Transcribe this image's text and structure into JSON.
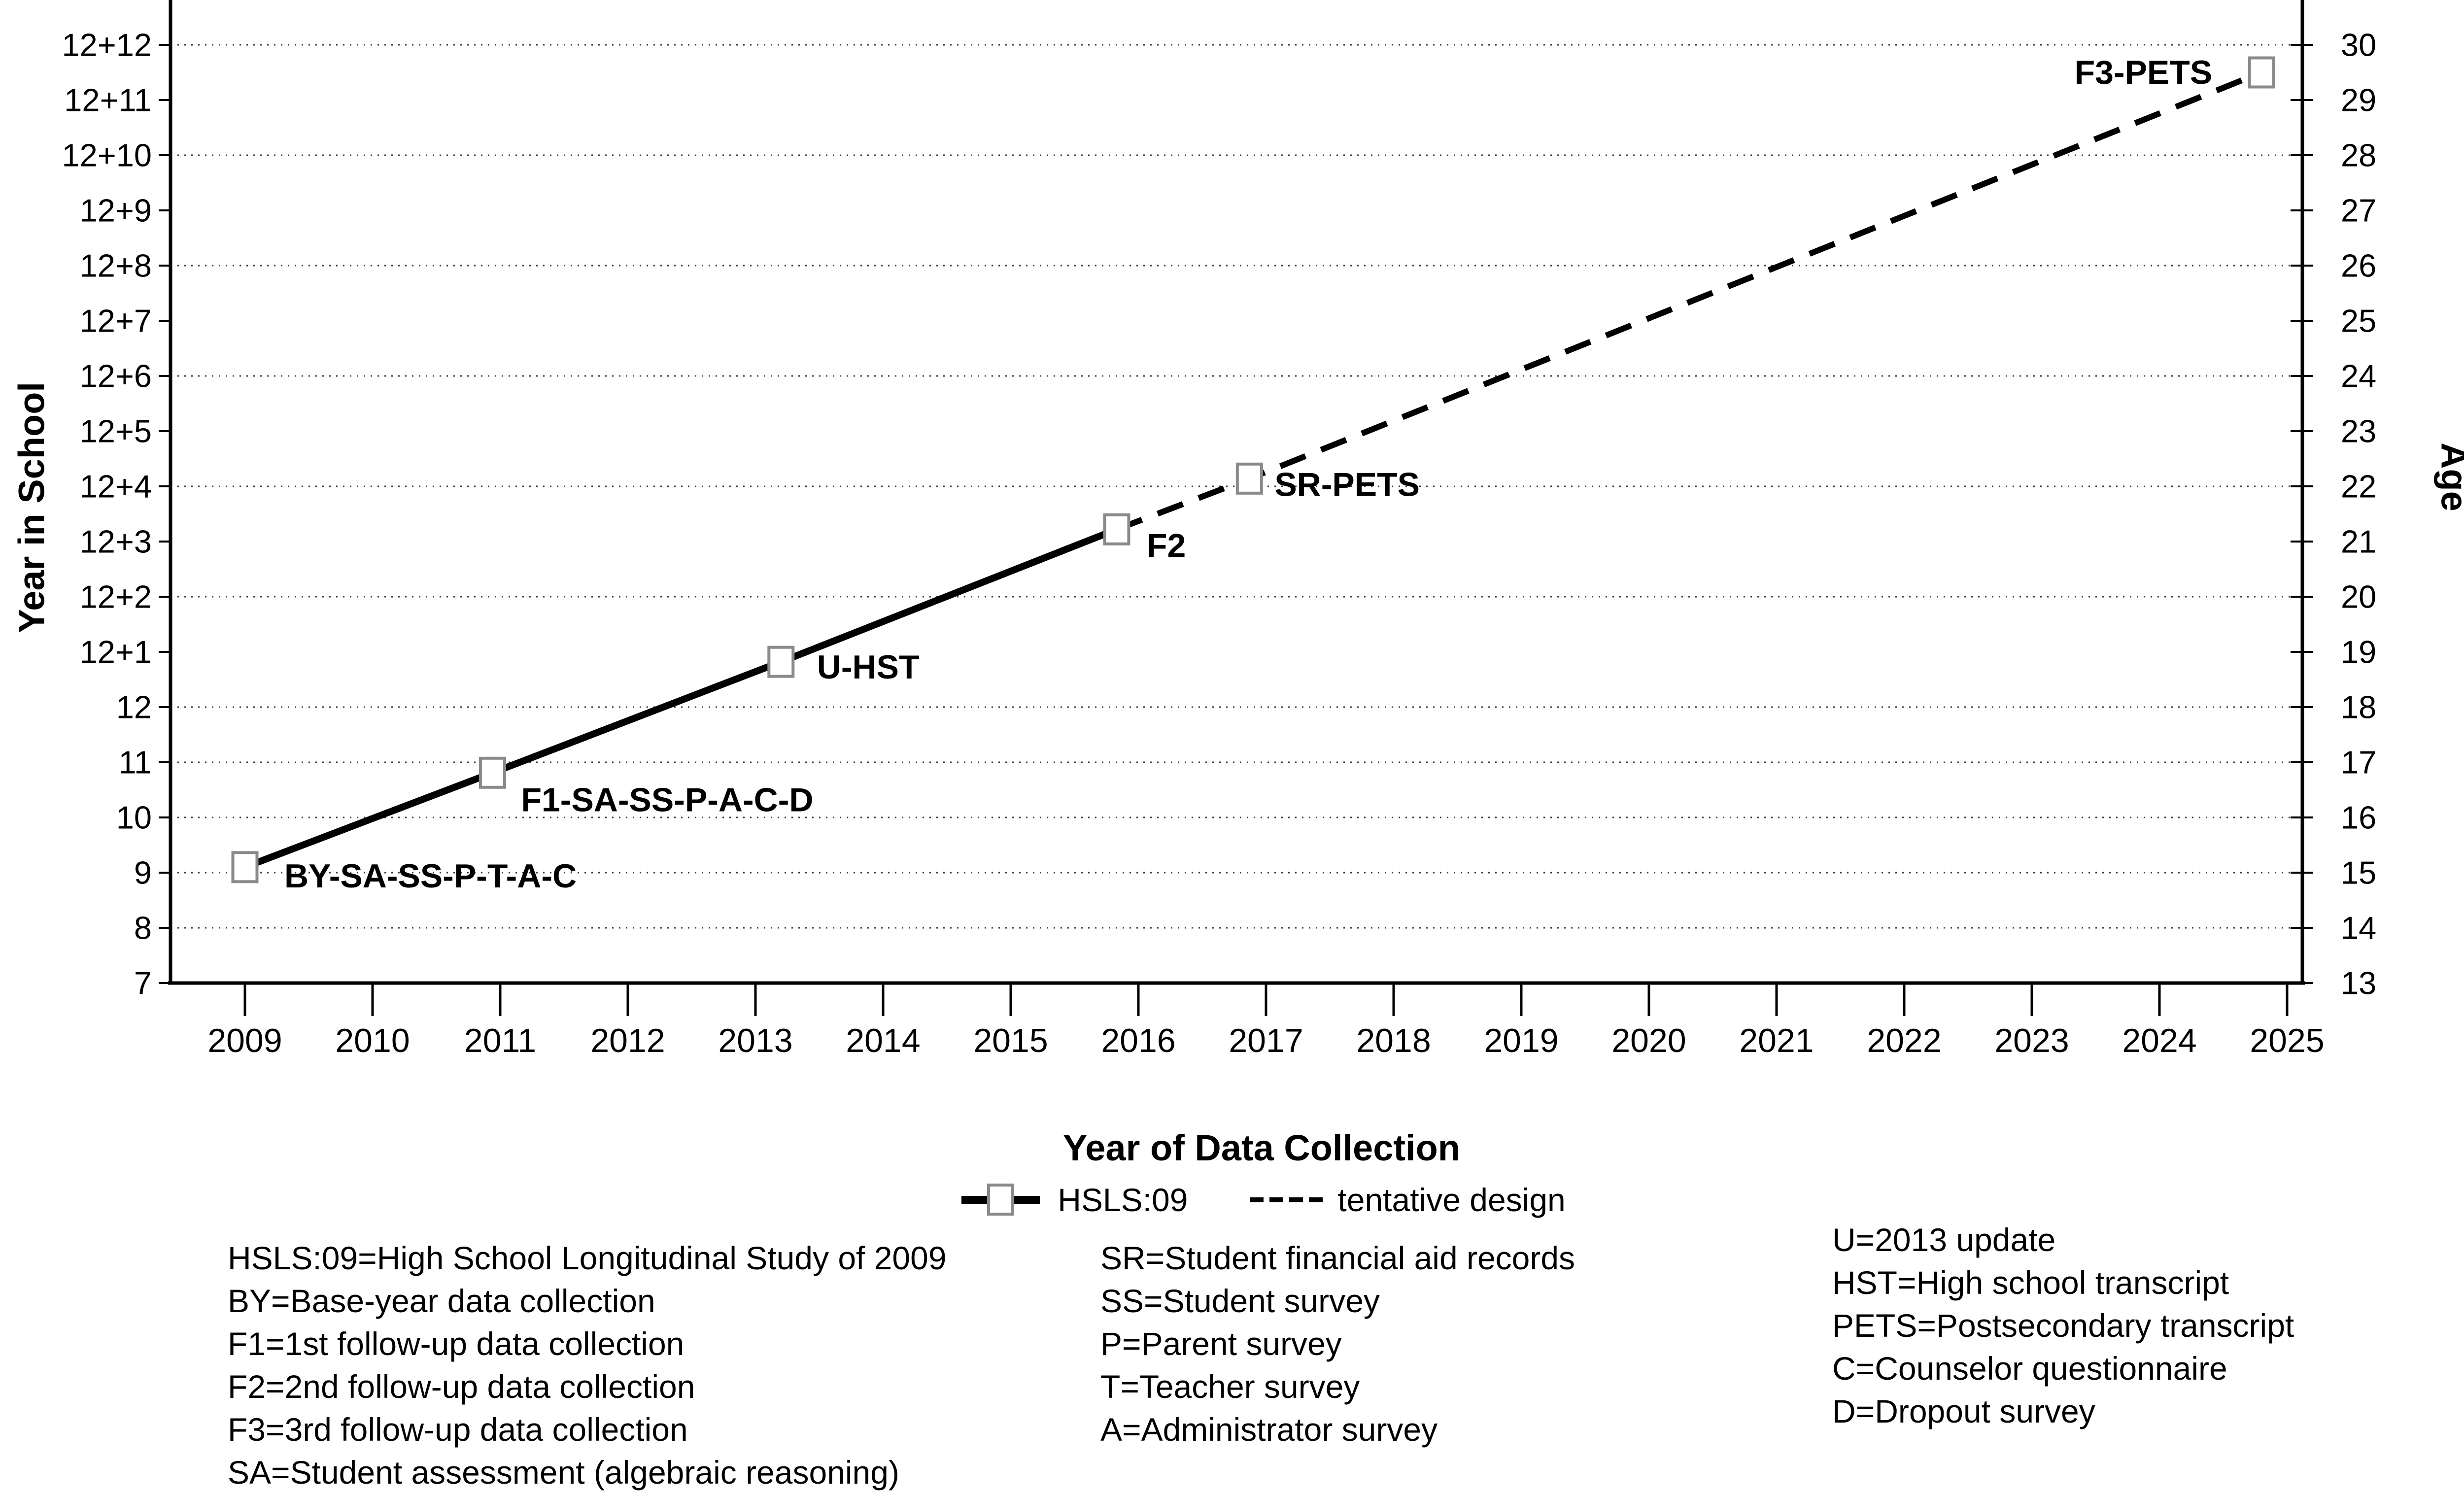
{
  "chart_data": {
    "type": "line",
    "xlabel": "Year of Data Collection",
    "ylabel_left": "Year in School",
    "ylabel_right": "Age",
    "x_ticks": [
      2009,
      2010,
      2011,
      2012,
      2013,
      2014,
      2015,
      2016,
      2017,
      2018,
      2019,
      2020,
      2021,
      2022,
      2023,
      2024,
      2025
    ],
    "xlim": [
      2008.4,
      2025.2
    ],
    "age_ylim": [
      13,
      30.8
    ],
    "grid": "dotted horizontal lines",
    "gridline_ages": [
      14,
      15,
      16,
      17,
      18,
      20,
      22,
      24,
      26,
      28,
      30
    ],
    "y_ticks": [
      {
        "school": "7",
        "age": 13
      },
      {
        "school": "8",
        "age": 14
      },
      {
        "school": "9",
        "age": 15
      },
      {
        "school": "10",
        "age": 16
      },
      {
        "school": "11",
        "age": 17
      },
      {
        "school": "12",
        "age": 18
      },
      {
        "school": "12+1",
        "age": 19
      },
      {
        "school": "12+2",
        "age": 20
      },
      {
        "school": "12+3",
        "age": 21
      },
      {
        "school": "12+4",
        "age": 22
      },
      {
        "school": "12+5",
        "age": 23
      },
      {
        "school": "12+6",
        "age": 24
      },
      {
        "school": "12+7",
        "age": 25
      },
      {
        "school": "12+8",
        "age": 26
      },
      {
        "school": "12+9",
        "age": 27
      },
      {
        "school": "12+10",
        "age": 28
      },
      {
        "school": "12+11",
        "age": 29
      },
      {
        "school": "12+12",
        "age": 30
      }
    ],
    "series": [
      {
        "name": "HSLS:09",
        "line": "solid",
        "points": [
          {
            "year": 2009.0,
            "age": 15.1,
            "label": "BY-SA-SS-P-T-A-C",
            "dx": 80,
            "dy": 18
          },
          {
            "year": 2010.94,
            "age": 16.81,
            "label": "F1-SA-SS-P-A-C-D",
            "dx": 58,
            "dy": 55
          },
          {
            "year": 2013.2,
            "age": 18.82,
            "label": "U-HST",
            "dx": 73,
            "dy": 11
          },
          {
            "year": 2015.83,
            "age": 21.22,
            "label": "F2",
            "dx": 61,
            "dy": 33
          }
        ]
      },
      {
        "name": "tentative design",
        "line": "dashed",
        "points": [
          {
            "year": 2015.83,
            "age": 21.22,
            "marker": false
          },
          {
            "year": 2016.87,
            "age": 22.14,
            "label": "SR-PETS",
            "dx": 51,
            "dy": 12
          },
          {
            "year": 2024.8,
            "age": 29.5,
            "label": "F3-PETS",
            "dx": -100,
            "dy": 0,
            "anchor": "end"
          }
        ]
      }
    ],
    "legend": [
      {
        "label": "HSLS:09",
        "swatch": "solid-line-with-open-square-marker"
      },
      {
        "label": "tentative design",
        "swatch": "dashed-line"
      }
    ],
    "legend_position": "below x-axis title, centered"
  },
  "key": {
    "col1": [
      "HSLS:09=High School Longitudinal Study of 2009",
      "BY=Base-year data collection",
      "F1=1st follow-up data collection",
      "F2=2nd follow-up data collection",
      "F3=3rd follow-up data collection",
      "SA=Student assessment (algebraic reasoning)"
    ],
    "col2": [
      "SR=Student financial aid records",
      "SS=Student survey",
      "P=Parent survey",
      "T=Teacher survey",
      "A=Administrator survey"
    ],
    "col3": [
      "U=2013 update",
      "HST=High school transcript",
      "PETS=Postsecondary transcript",
      "C=Counselor questionnaire",
      "D=Dropout survey"
    ]
  }
}
